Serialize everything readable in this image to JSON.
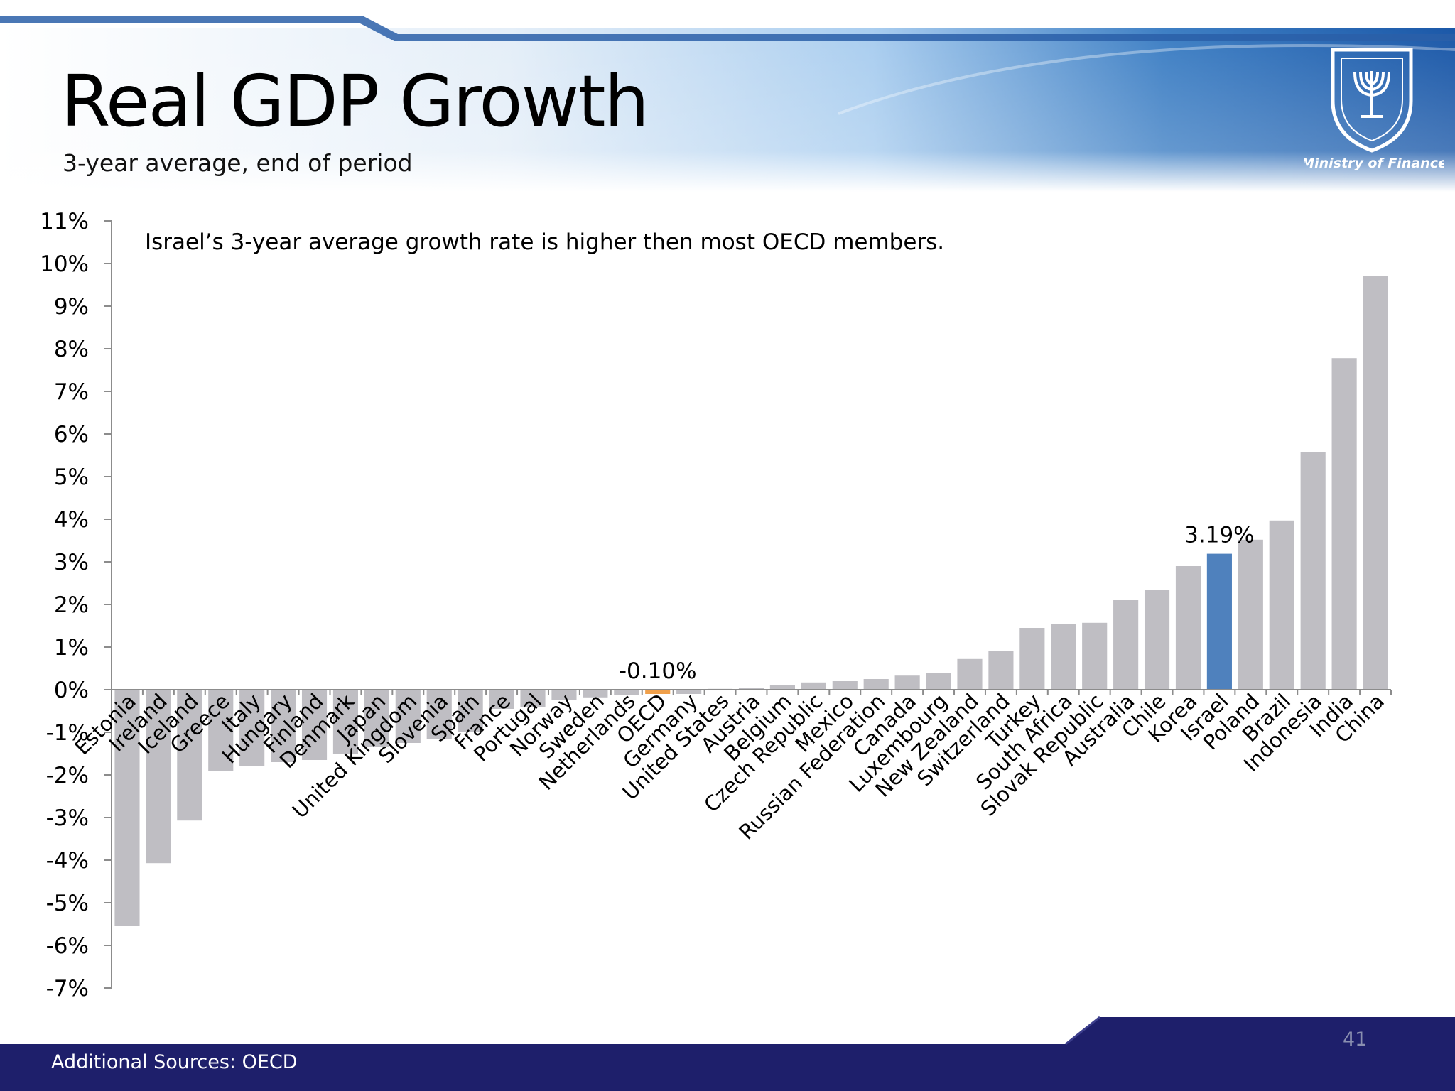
{
  "title": "Real GDP Growth",
  "subtitle": "3-year average, end of period",
  "logo_text": "Ministry of Finance",
  "footer": {
    "source": "Additional Sources: OECD",
    "page_number": "41"
  },
  "colors": {
    "bar_default": "#bfbec3",
    "bar_highlight": "#4f81bd",
    "bar_oecd": "#f0a04b",
    "footer_bg": "#1e1f6b"
  },
  "chart_data": {
    "type": "bar",
    "title": "",
    "xlabel": "",
    "ylabel": "",
    "ylim": [
      -7,
      11
    ],
    "y_ticks": [
      "11%",
      "10%",
      "9%",
      "8%",
      "7%",
      "6%",
      "5%",
      "4%",
      "3%",
      "2%",
      "1%",
      "0%",
      "-1%",
      "-2%",
      "-3%",
      "-4%",
      "-5%",
      "-6%",
      "-7%"
    ],
    "annotation": "Israel’s 3-year average growth rate is higher then most OECD members.",
    "data_labels": [
      {
        "category": "OECD",
        "text": "-0.10%"
      },
      {
        "category": "Israel",
        "text": "3.19%"
      }
    ],
    "highlight": "Israel",
    "reference": "OECD",
    "categories": [
      "Estonia",
      "Ireland",
      "Iceland",
      "Greece",
      "Italy",
      "Hungary",
      "Finland",
      "Denmark",
      "Japan",
      "United Kingdom",
      "Slovenia",
      "Spain",
      "France",
      "Portugal",
      "Norway",
      "Sweden",
      "Netherlands",
      "OECD",
      "Germany",
      "United States",
      "Austria",
      "Belgium",
      "Czech Republic",
      "Mexico",
      "Russian Federation",
      "Canada",
      "Luxembourg",
      "New Zealand",
      "Switzerland",
      "Turkey",
      "South Africa",
      "Slovak Republic",
      "Australia",
      "Chile",
      "Korea",
      "Israel",
      "Poland",
      "Brazil",
      "Indonesia",
      "India",
      "China"
    ],
    "values": [
      -5.55,
      -4.07,
      -3.07,
      -1.9,
      -1.8,
      -1.7,
      -1.65,
      -1.5,
      -1.35,
      -1.25,
      -1.15,
      -1.0,
      -0.45,
      -0.4,
      -0.25,
      -0.18,
      -0.12,
      -0.1,
      -0.1,
      0.02,
      0.05,
      0.1,
      0.17,
      0.2,
      0.25,
      0.33,
      0.4,
      0.72,
      0.9,
      1.45,
      1.55,
      1.57,
      2.1,
      2.35,
      2.9,
      3.19,
      3.52,
      3.97,
      5.57,
      7.78,
      9.7
    ]
  }
}
